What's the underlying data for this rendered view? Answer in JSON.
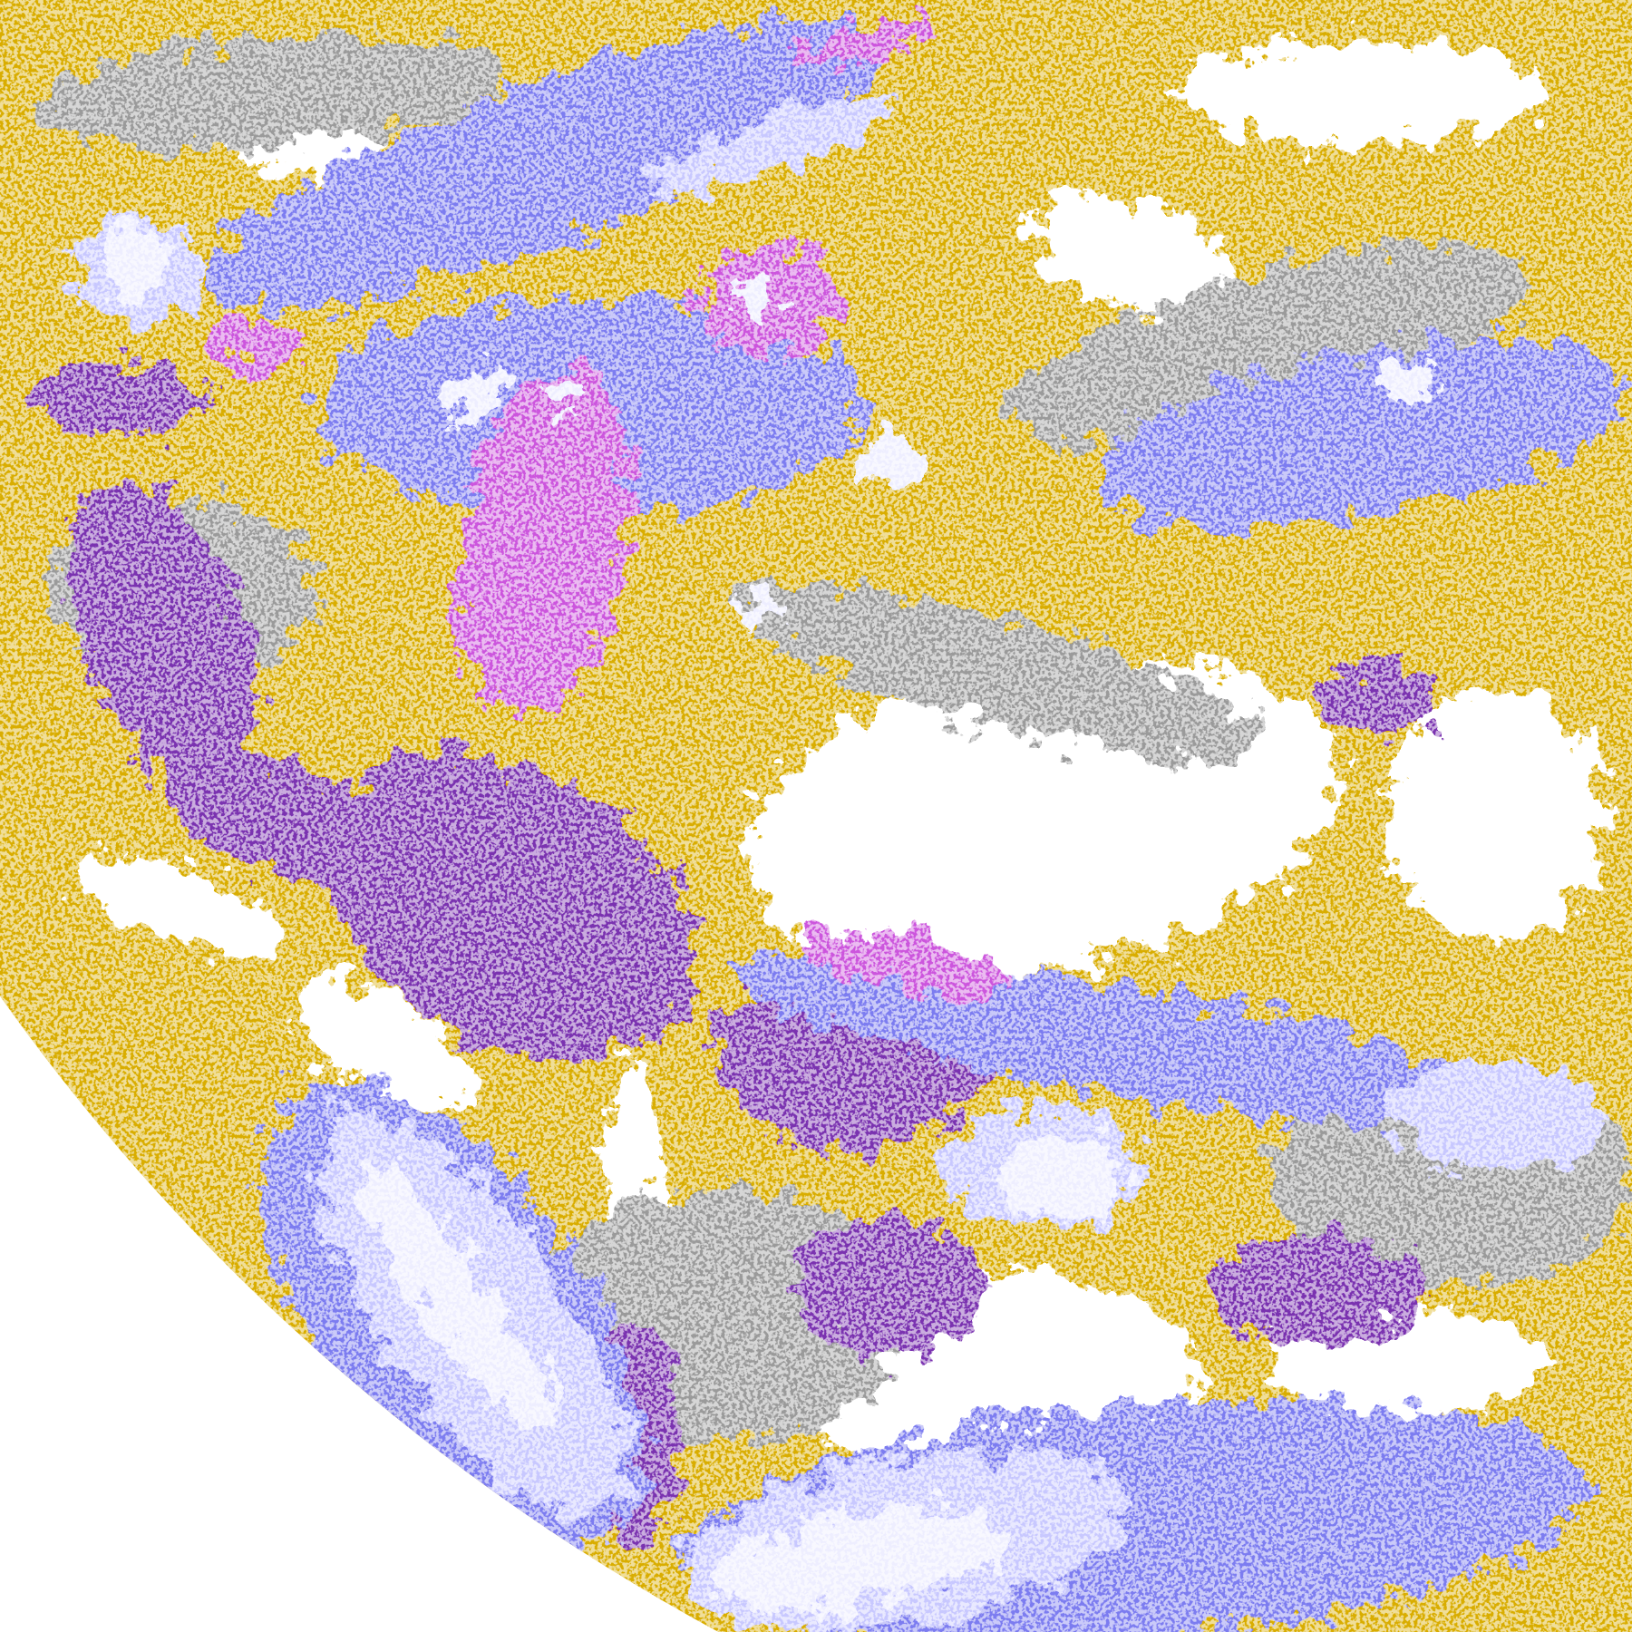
{
  "image": {
    "kind": "satellite cloud-type classification imagery",
    "palette": {
      "clear": "#ffffff",
      "low_cloud": "#d9ad00",
      "low_cloud_dark": "#b88c00",
      "mid_cloud": "#9a9a9a",
      "thin_high": "#7b7bf0",
      "high_cloud_light": "#c8c8ff",
      "deep_convective": "#eeeeff",
      "overshooting": "#cc55dd",
      "thick_ice": "#7a33b0",
      "space": "#ffffff"
    }
  }
}
